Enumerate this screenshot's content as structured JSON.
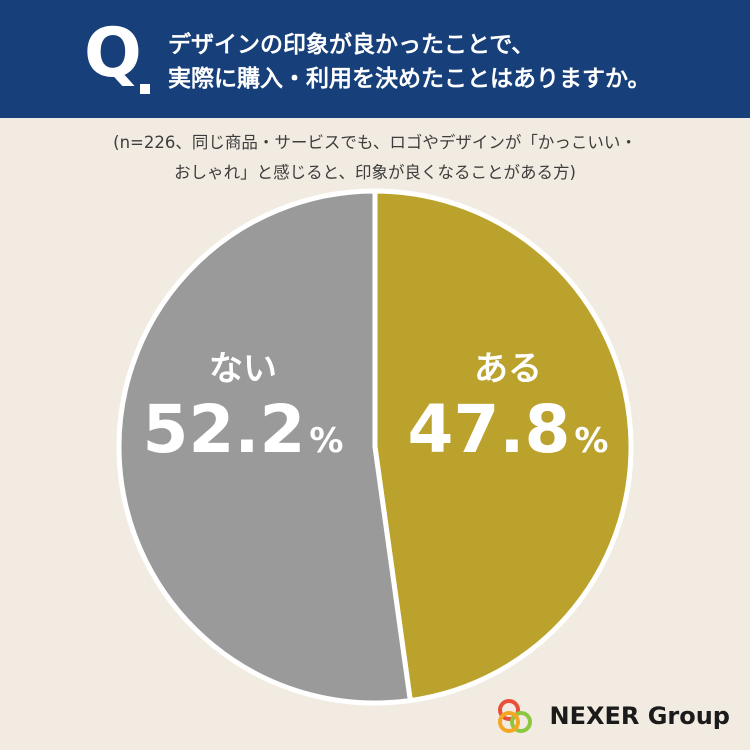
{
  "header": {
    "q_mark": "Q",
    "question_line1": "デザインの印象が良かったことで、",
    "question_line2": "実際に購入・利用を決めたことはありますか。"
  },
  "note": {
    "line1": "(n=226、同じ商品・サービスでも、ロゴやデザインが「かっこいい・",
    "line2": "おしゃれ」と感じると、印象が良くなることがある方)"
  },
  "chart_data": {
    "type": "pie",
    "title": "",
    "unit": "%",
    "slices": [
      {
        "label": "ある",
        "value": 47.8,
        "value_text": "47.8",
        "color": "#bba22d"
      },
      {
        "label": "ない",
        "value": 52.2,
        "value_text": "52.2",
        "color": "#9a9a9a"
      }
    ],
    "start_angle_deg": 0,
    "direction": "clockwise"
  },
  "logo": {
    "text": "NEXER Group",
    "icon": "interlocking-rings-logo",
    "ring_colors": [
      "#e8503a",
      "#8dc63f",
      "#f5a623"
    ]
  }
}
